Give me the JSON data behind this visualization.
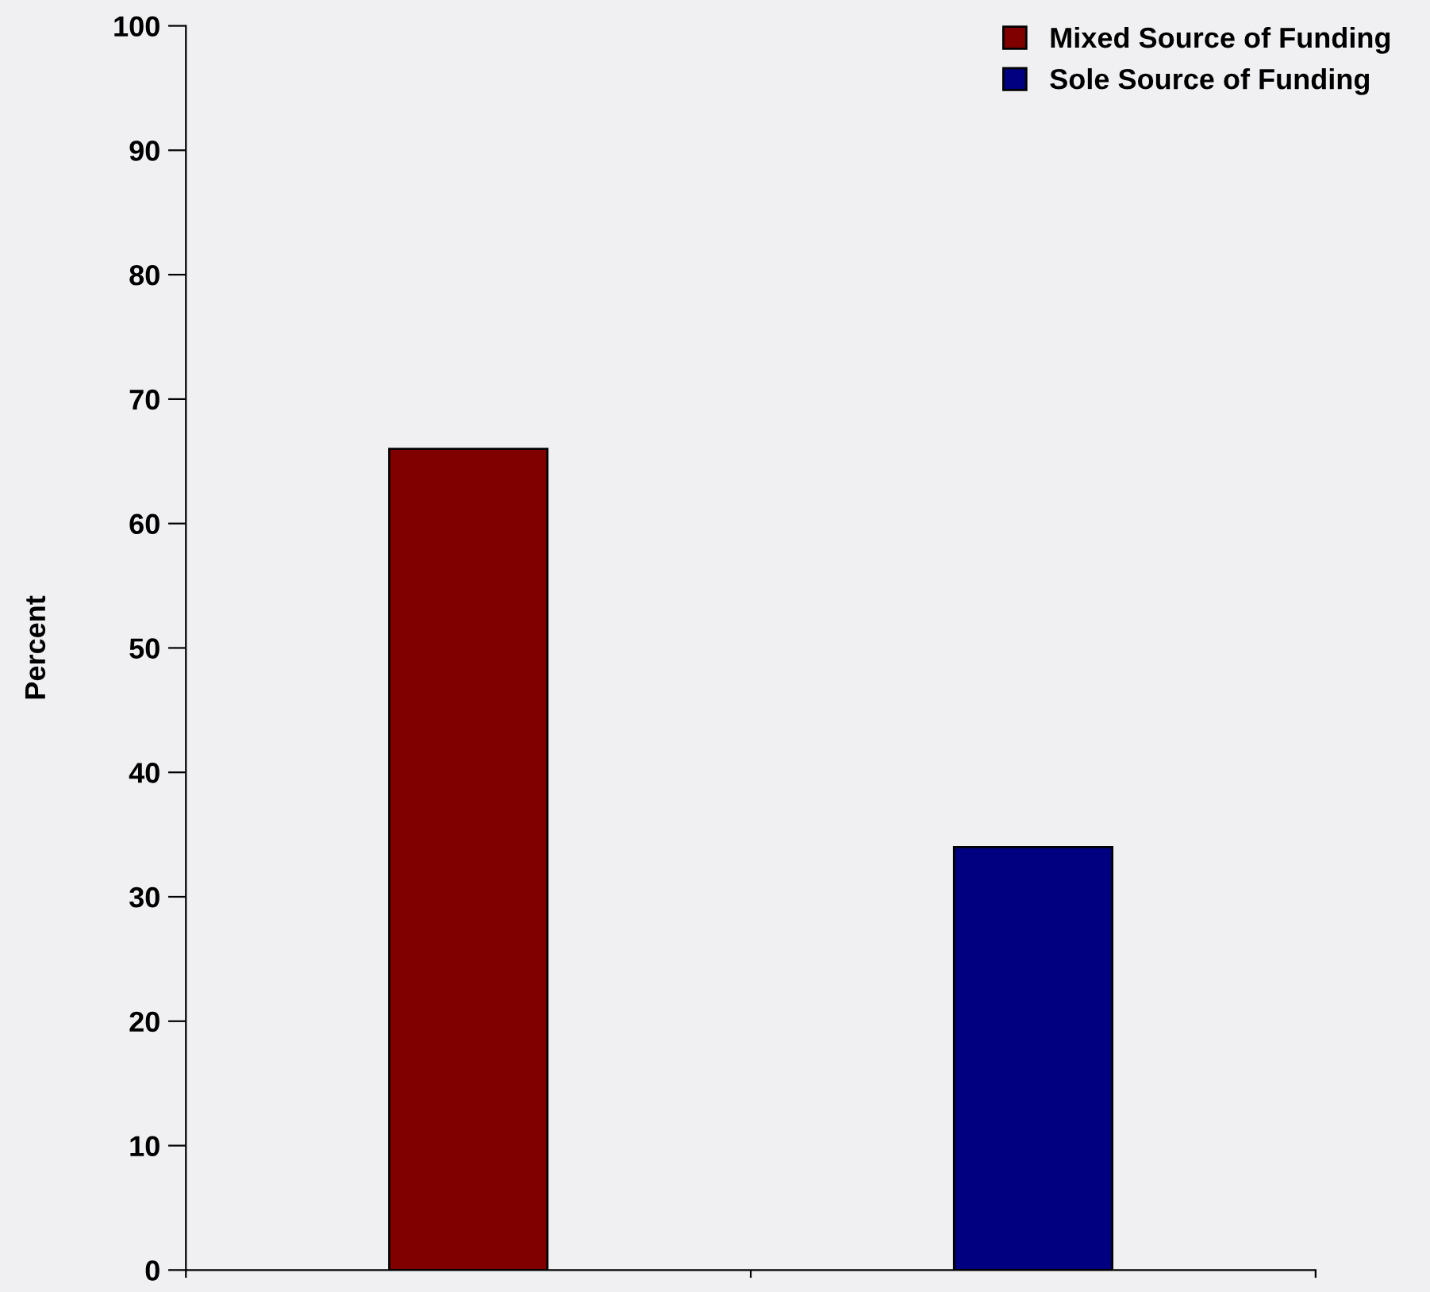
{
  "chart_data": {
    "type": "bar",
    "ylabel": "Percent",
    "categories": [
      null,
      null
    ],
    "series": [
      {
        "name": "Mixed Source of Funding",
        "color": "#800000",
        "values": [
          66,
          null
        ]
      },
      {
        "name": "Sole Source of Funding",
        "color": "#000080",
        "values": [
          null,
          34
        ]
      }
    ],
    "ylim": [
      0,
      100
    ],
    "yticks": [
      0,
      10,
      20,
      30,
      40,
      50,
      60,
      70,
      80,
      90,
      100
    ],
    "grid": false,
    "legend": "top right"
  }
}
